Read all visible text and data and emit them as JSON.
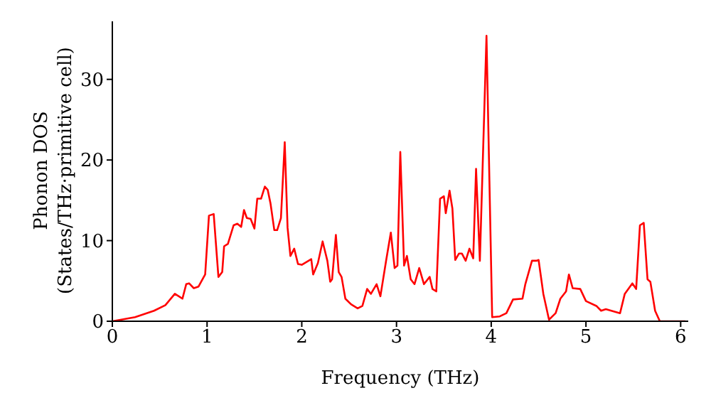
{
  "chart_data": {
    "type": "line",
    "xlabel": "Frequency (THz)",
    "ylabel": "Phonon DOS\n(States/THz·primitive cell)",
    "xlim": [
      0,
      6.08
    ],
    "xticks": [
      0,
      1,
      2,
      3,
      4,
      5,
      6
    ],
    "ylim": [
      0,
      37.2
    ],
    "yticks": [
      0,
      10,
      20,
      30
    ],
    "grid": false,
    "legend": false,
    "marker": "none",
    "line_style": "solid",
    "series": [
      {
        "color": "#ff0000",
        "x": [
          0,
          0.24,
          0.44,
          0.56,
          0.66,
          0.74,
          0.78,
          0.81,
          0.86,
          0.91,
          0.98,
          1.02,
          1.07,
          1.12,
          1.16,
          1.18,
          1.22,
          1.28,
          1.32,
          1.36,
          1.39,
          1.42,
          1.46,
          1.5,
          1.53,
          1.57,
          1.61,
          1.64,
          1.67,
          1.71,
          1.74,
          1.78,
          1.82,
          1.85,
          1.88,
          1.92,
          1.96,
          2.0,
          2.1,
          2.12,
          2.17,
          2.22,
          2.27,
          2.3,
          2.32,
          2.36,
          2.39,
          2.42,
          2.46,
          2.52,
          2.59,
          2.64,
          2.69,
          2.73,
          2.79,
          2.83,
          2.89,
          2.94,
          2.98,
          3.01,
          3.04,
          3.08,
          3.11,
          3.15,
          3.19,
          3.24,
          3.29,
          3.35,
          3.38,
          3.42,
          3.46,
          3.5,
          3.52,
          3.56,
          3.59,
          3.62,
          3.66,
          3.69,
          3.73,
          3.77,
          3.81,
          3.84,
          3.88,
          3.95,
          4.01,
          4.09,
          4.16,
          4.23,
          4.33,
          4.36,
          4.43,
          4.48,
          4.5,
          4.55,
          4.61,
          4.68,
          4.73,
          4.79,
          4.82,
          4.86,
          4.94,
          5.0,
          5.11,
          5.16,
          5.21,
          5.36,
          5.41,
          5.49,
          5.53,
          5.57,
          5.61,
          5.65,
          5.68,
          5.73,
          5.78,
          6.05
        ],
        "values": [
          0,
          0.5,
          1.3,
          2.0,
          3.4,
          2.8,
          4.6,
          4.7,
          4.1,
          4.3,
          5.8,
          13.1,
          13.3,
          5.5,
          6.1,
          9.3,
          9.6,
          11.9,
          12.1,
          11.7,
          13.8,
          12.8,
          12.7,
          11.5,
          15.2,
          15.2,
          16.7,
          16.3,
          14.6,
          11.3,
          11.3,
          12.8,
          22.2,
          11.6,
          8.1,
          9.0,
          7.1,
          7.0,
          7.7,
          5.8,
          7.2,
          9.9,
          7.5,
          4.9,
          5.2,
          10.7,
          6.1,
          5.5,
          2.8,
          2.1,
          1.6,
          1.9,
          4.0,
          3.4,
          4.6,
          3.1,
          7.5,
          11.0,
          6.6,
          6.9,
          21.0,
          6.9,
          8.1,
          5.2,
          4.6,
          6.6,
          4.6,
          5.5,
          4.0,
          3.7,
          15.2,
          15.5,
          13.4,
          16.2,
          14.0,
          7.6,
          8.4,
          8.4,
          7.5,
          9.0,
          7.8,
          18.9,
          7.5,
          35.4,
          0.5,
          0.6,
          1.0,
          2.7,
          2.8,
          4.6,
          7.5,
          7.5,
          7.6,
          3.4,
          0.2,
          1.0,
          2.8,
          3.7,
          5.8,
          4.1,
          4.0,
          2.5,
          1.9,
          1.3,
          1.5,
          1.0,
          3.4,
          4.7,
          4.0,
          11.9,
          12.2,
          5.2,
          4.9,
          1.3,
          0.0,
          0
        ]
      }
    ]
  }
}
